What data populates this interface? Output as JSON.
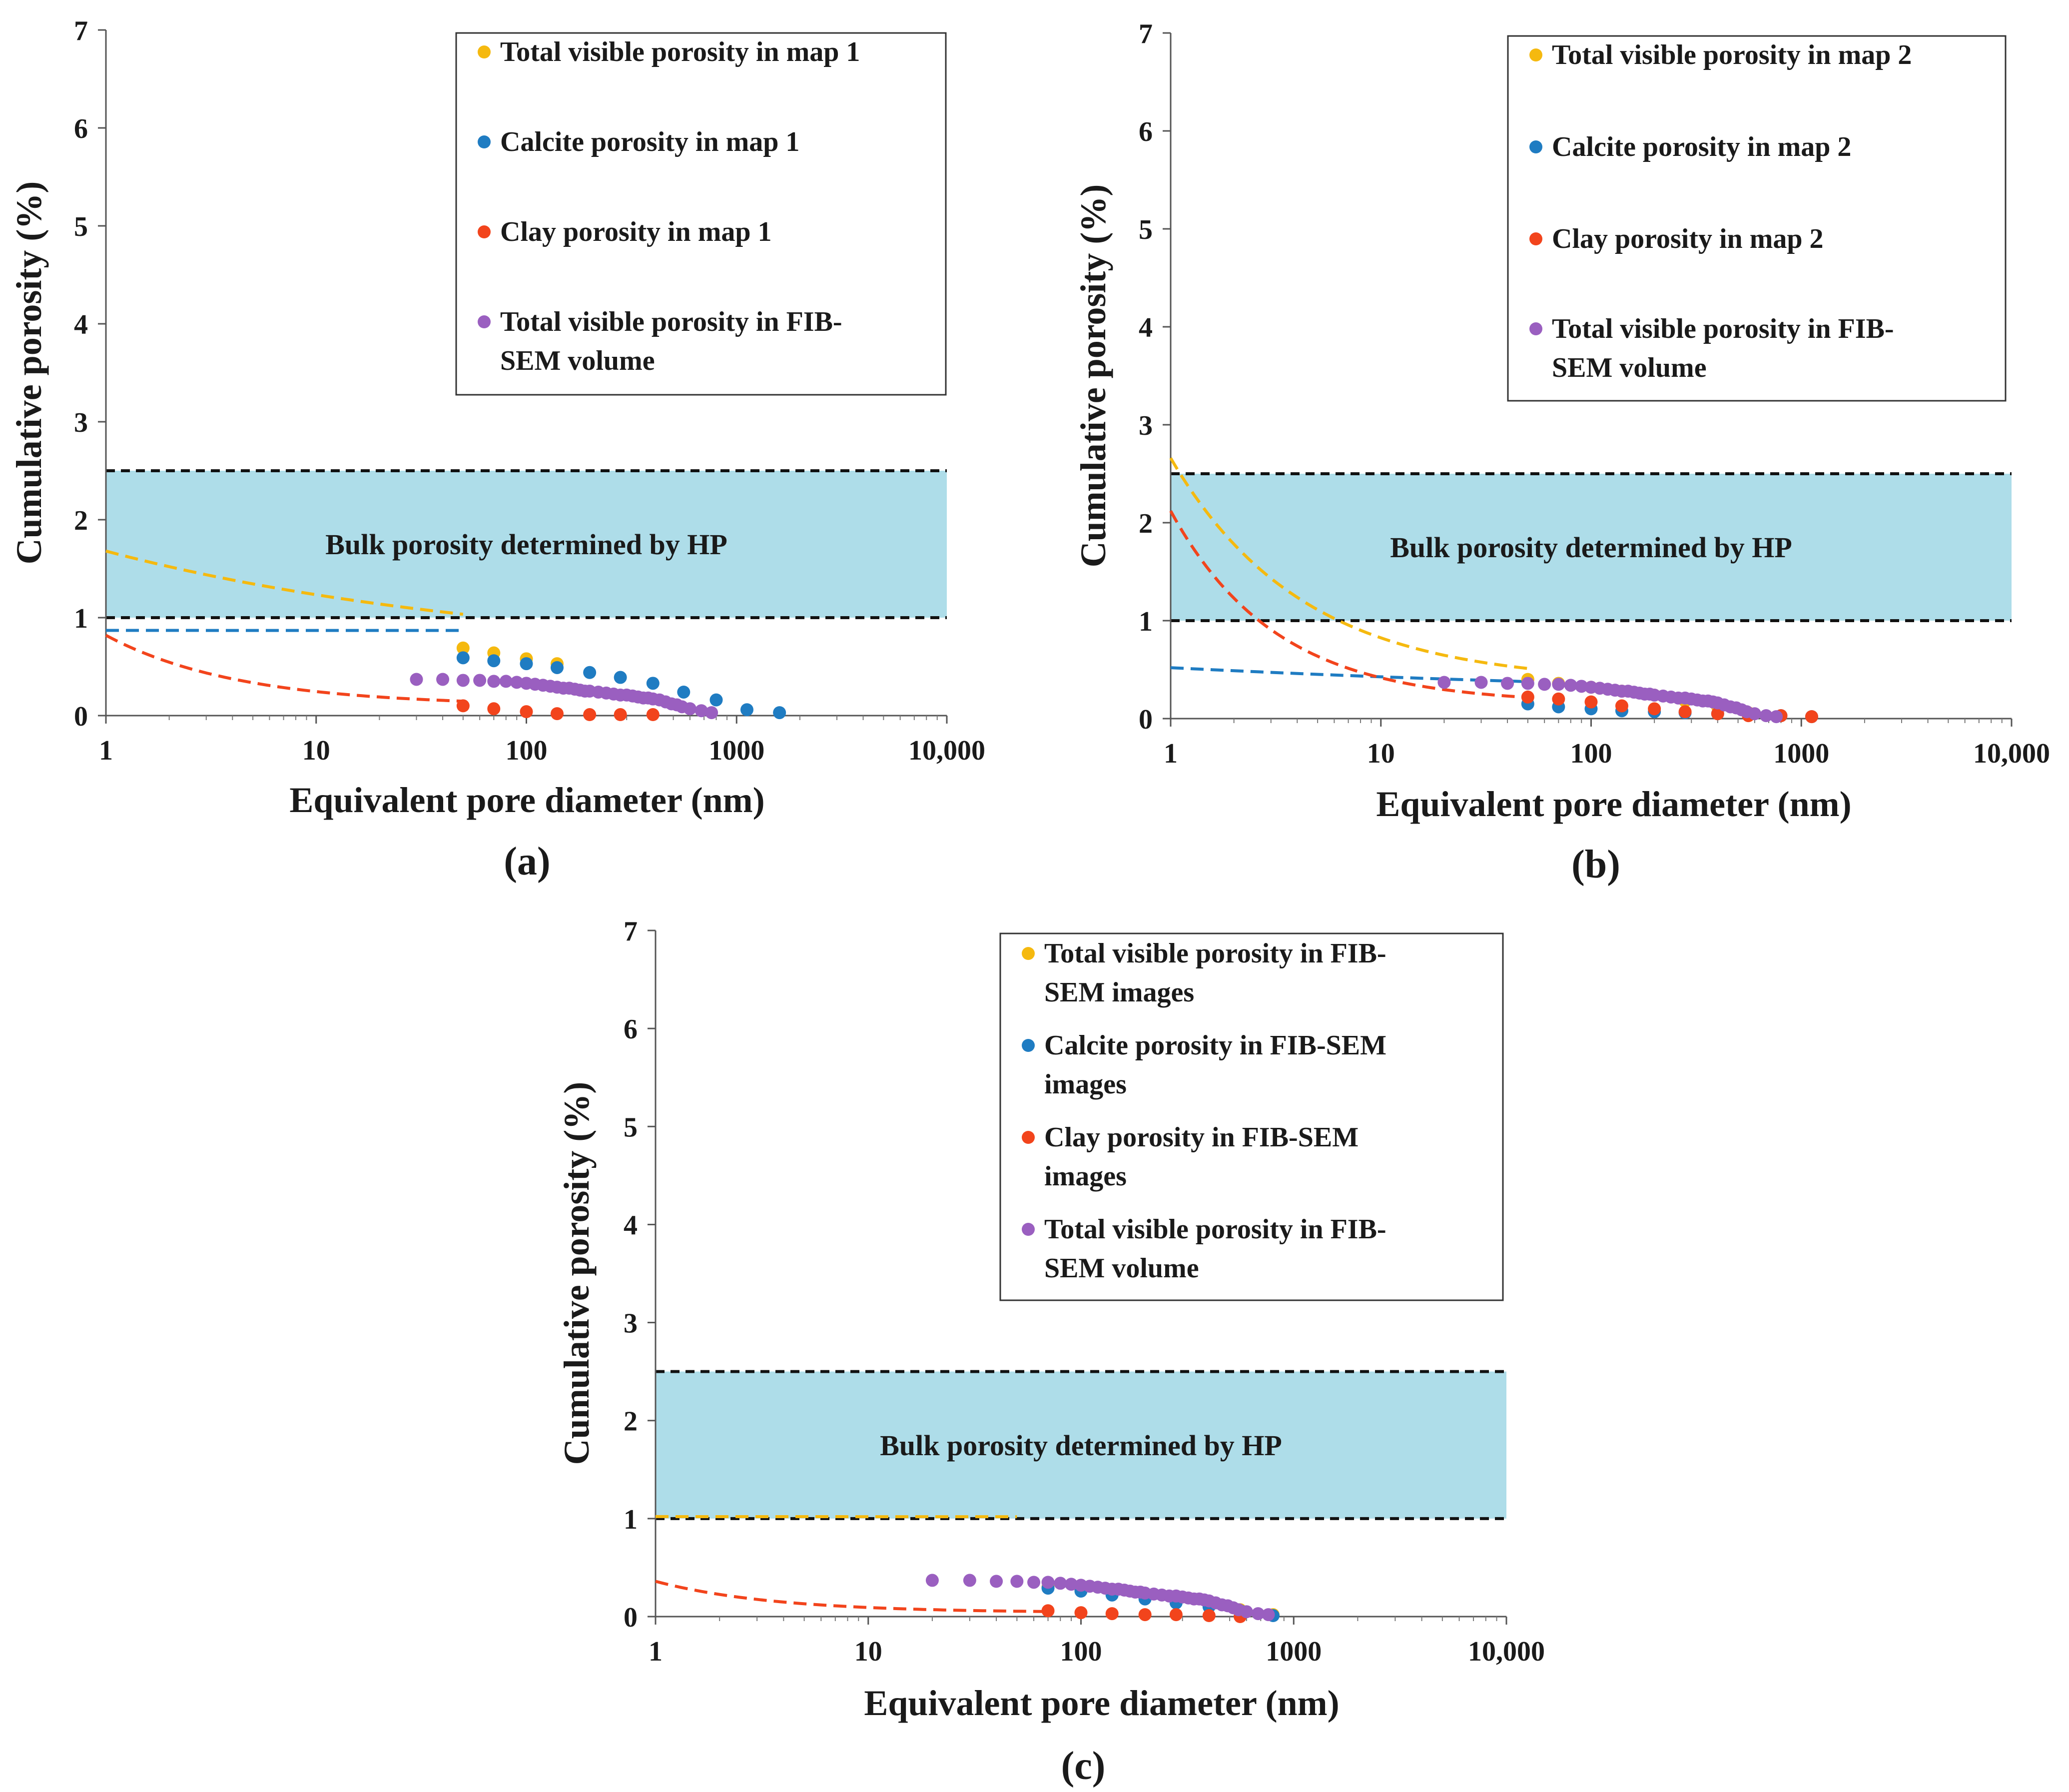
{
  "colors": {
    "total": "#f5b90f",
    "calcite": "#1f7cc2",
    "clay": "#f2441c",
    "fib": "#9a5fc0",
    "band": "#aedde9"
  },
  "chart_data": [
    {
      "type": "scatter",
      "panel_label": "(a)",
      "xlabel": "Equivalent pore diameter (nm)",
      "ylabel": "Cumulative porosity (%)",
      "xscale": "log",
      "xlim": [
        1,
        10000
      ],
      "ylim": [
        0,
        7
      ],
      "xticks": [
        {
          "v": 1,
          "label": "1"
        },
        {
          "v": 10,
          "label": "10"
        },
        {
          "v": 100,
          "label": "100"
        },
        {
          "v": 1000,
          "label": "1000"
        },
        {
          "v": 10000,
          "label": "10,000"
        }
      ],
      "yticks": [
        0,
        1,
        2,
        3,
        4,
        5,
        6,
        7
      ],
      "band": {
        "ymin": 1.0,
        "ymax": 2.5,
        "label": "Bulk porosity determined by HP"
      },
      "legend_position": "top-right",
      "series": [
        {
          "key": "total",
          "name": "Total visible porosity in map 1",
          "x": [
            50,
            70,
            100,
            140
          ],
          "y": [
            0.69,
            0.64,
            0.58,
            0.53
          ],
          "trend": {
            "a": 1.68,
            "b": 1.1,
            "c": 0.52,
            "d": 0.16,
            "xmax": 50
          }
        },
        {
          "key": "calcite",
          "name": "Calcite porosity in map 1",
          "x": [
            50,
            70,
            100,
            140,
            200,
            280,
            400,
            560,
            800,
            1120,
            1600
          ],
          "y": [
            0.59,
            0.56,
            0.53,
            0.49,
            0.44,
            0.39,
            0.33,
            0.24,
            0.16,
            0.06,
            0.03
          ],
          "trend": {
            "a": 0.87,
            "b": 0.001,
            "c": 1,
            "d": 0.13,
            "xmax": 50
          }
        },
        {
          "key": "clay",
          "name": "Clay porosity in map 1",
          "x": [
            50,
            70,
            100,
            140,
            200,
            280,
            400
          ],
          "y": [
            0.1,
            0.07,
            0.04,
            0.02,
            0.01,
            0.01,
            0.01
          ],
          "trend": {
            "a": 0.82,
            "b": 0.72,
            "c": 1.6,
            "d": 0.01,
            "xmax": 50
          }
        },
        {
          "key": "fib",
          "name": "Total visible porosity in FIB-SEM volume",
          "x": [
            30,
            40,
            50,
            60,
            70,
            80,
            90,
            100,
            110,
            120,
            130,
            140,
            150,
            160,
            170,
            180,
            190,
            200,
            220,
            240,
            260,
            280,
            300,
            320,
            340,
            360,
            380,
            400,
            430,
            460,
            490,
            520,
            550,
            600,
            680,
            760
          ],
          "y": [
            0.37,
            0.37,
            0.36,
            0.36,
            0.35,
            0.35,
            0.34,
            0.33,
            0.32,
            0.31,
            0.3,
            0.29,
            0.28,
            0.28,
            0.27,
            0.26,
            0.25,
            0.25,
            0.24,
            0.23,
            0.22,
            0.21,
            0.21,
            0.2,
            0.19,
            0.18,
            0.18,
            0.17,
            0.16,
            0.14,
            0.12,
            0.11,
            0.09,
            0.07,
            0.05,
            0.03
          ]
        }
      ]
    },
    {
      "type": "scatter",
      "panel_label": "(b)",
      "xlabel": "Equivalent pore diameter (nm)",
      "ylabel": "Cumulative porosity (%)",
      "xscale": "log",
      "xlim": [
        1,
        10000
      ],
      "ylim": [
        0,
        7
      ],
      "xticks": [
        {
          "v": 1,
          "label": "1"
        },
        {
          "v": 10,
          "label": "10"
        },
        {
          "v": 100,
          "label": "100"
        },
        {
          "v": 1000,
          "label": "1000"
        },
        {
          "v": 10000,
          "label": "10,000"
        }
      ],
      "yticks": [
        0,
        1,
        2,
        3,
        4,
        5,
        6,
        7
      ],
      "band": {
        "ymin": 1.0,
        "ymax": 2.5,
        "label": "Bulk porosity determined by HP"
      },
      "legend_position": "top-right",
      "series": [
        {
          "key": "total",
          "name": "Total visible porosity in map 2",
          "x": [
            50,
            70,
            100,
            140,
            200,
            280,
            400,
            560
          ],
          "y": [
            0.4,
            0.36,
            0.32,
            0.28,
            0.24,
            0.18,
            0.12,
            0.06
          ],
          "trend": {
            "a": 2.66,
            "b": 2.3,
            "c": 1.6,
            "d": 0.36,
            "xmax": 50
          }
        },
        {
          "key": "calcite",
          "name": "Calcite porosity in map 2",
          "x": [
            50,
            70,
            100,
            140,
            200,
            280,
            400,
            560,
            800,
            1120
          ],
          "y": [
            0.15,
            0.12,
            0.1,
            0.08,
            0.07,
            0.06,
            0.05,
            0.04,
            0.03,
            0.02
          ],
          "trend": {
            "a": 0.52,
            "b": 0.34,
            "c": 0.32,
            "d": 0.07,
            "xmax": 50
          }
        },
        {
          "key": "clay",
          "name": "Clay porosity in map 2",
          "x": [
            50,
            70,
            100,
            140,
            200,
            280,
            400,
            560,
            800,
            1120
          ],
          "y": [
            0.22,
            0.2,
            0.17,
            0.13,
            0.1,
            0.07,
            0.05,
            0.03,
            0.03,
            0.02
          ],
          "trend": {
            "a": 2.12,
            "b": 1.97,
            "c": 2.0,
            "d": 0.2,
            "xmax": 50
          }
        },
        {
          "key": "fib",
          "name": "Total visible porosity in FIB-SEM volume",
          "x": [
            20,
            30,
            40,
            50,
            60,
            70,
            80,
            90,
            100,
            110,
            120,
            130,
            140,
            150,
            160,
            170,
            180,
            190,
            200,
            220,
            240,
            260,
            280,
            300,
            320,
            340,
            360,
            380,
            400,
            430,
            460,
            490,
            520,
            550,
            600,
            680,
            760
          ],
          "y": [
            0.37,
            0.37,
            0.36,
            0.36,
            0.35,
            0.35,
            0.34,
            0.33,
            0.32,
            0.31,
            0.3,
            0.29,
            0.28,
            0.28,
            0.27,
            0.26,
            0.25,
            0.25,
            0.24,
            0.23,
            0.22,
            0.21,
            0.21,
            0.2,
            0.19,
            0.18,
            0.18,
            0.17,
            0.16,
            0.14,
            0.12,
            0.11,
            0.09,
            0.07,
            0.05,
            0.03,
            0.02
          ]
        }
      ]
    },
    {
      "type": "scatter",
      "panel_label": "(c)",
      "xlabel": "Equivalent pore diameter (nm)",
      "ylabel": "Cumulative porosity (%)",
      "xscale": "log",
      "xlim": [
        1,
        10000
      ],
      "ylim": [
        0,
        7
      ],
      "xticks": [
        {
          "v": 1,
          "label": "1"
        },
        {
          "v": 10,
          "label": "10"
        },
        {
          "v": 100,
          "label": "100"
        },
        {
          "v": 1000,
          "label": "1000"
        },
        {
          "v": 10000,
          "label": "10,000"
        }
      ],
      "yticks": [
        0,
        1,
        2,
        3,
        4,
        5,
        6,
        7
      ],
      "band": {
        "ymin": 1.0,
        "ymax": 2.5,
        "label": "Bulk porosity determined by HP"
      },
      "legend_position": "top-right",
      "series": [
        {
          "key": "total",
          "name": "Total visible porosity in FIB-SEM images",
          "x": [
            70,
            100,
            140,
            200,
            280,
            400,
            560,
            800
          ],
          "y": [
            0.3,
            0.27,
            0.24,
            0.2,
            0.16,
            0.12,
            0.07,
            0.02
          ],
          "trend": {
            "a": 1.02,
            "b": 0.001,
            "c": 1,
            "d": 0.34,
            "xmax": 50
          }
        },
        {
          "key": "calcite",
          "name": "Calcite porosity in FIB-SEM images",
          "x": [
            70,
            100,
            140,
            200,
            280,
            400,
            560,
            800
          ],
          "y": [
            0.29,
            0.26,
            0.22,
            0.18,
            0.14,
            0.1,
            0.06,
            0.01
          ]
        },
        {
          "key": "clay",
          "name": "Clay porosity in FIB-SEM images",
          "x": [
            70,
            100,
            140,
            200,
            280,
            400,
            560
          ],
          "y": [
            0.06,
            0.04,
            0.03,
            0.02,
            0.02,
            0.01,
            0.0
          ],
          "trend": {
            "a": 0.36,
            "b": 0.32,
            "c": 1.8,
            "d": 0.04,
            "xmax": 70
          }
        },
        {
          "key": "fib",
          "name": "Total visible porosity in FIB-SEM volume",
          "x": [
            20,
            30,
            40,
            50,
            60,
            70,
            80,
            90,
            100,
            110,
            120,
            130,
            140,
            150,
            160,
            170,
            180,
            190,
            200,
            220,
            240,
            260,
            280,
            300,
            320,
            340,
            360,
            380,
            400,
            430,
            460,
            490,
            520,
            550,
            600,
            680,
            760
          ],
          "y": [
            0.37,
            0.37,
            0.36,
            0.36,
            0.35,
            0.35,
            0.34,
            0.33,
            0.32,
            0.31,
            0.3,
            0.29,
            0.28,
            0.28,
            0.27,
            0.26,
            0.25,
            0.25,
            0.24,
            0.23,
            0.22,
            0.21,
            0.21,
            0.2,
            0.19,
            0.18,
            0.18,
            0.17,
            0.16,
            0.14,
            0.12,
            0.11,
            0.09,
            0.07,
            0.05,
            0.03,
            0.02
          ]
        }
      ]
    }
  ]
}
